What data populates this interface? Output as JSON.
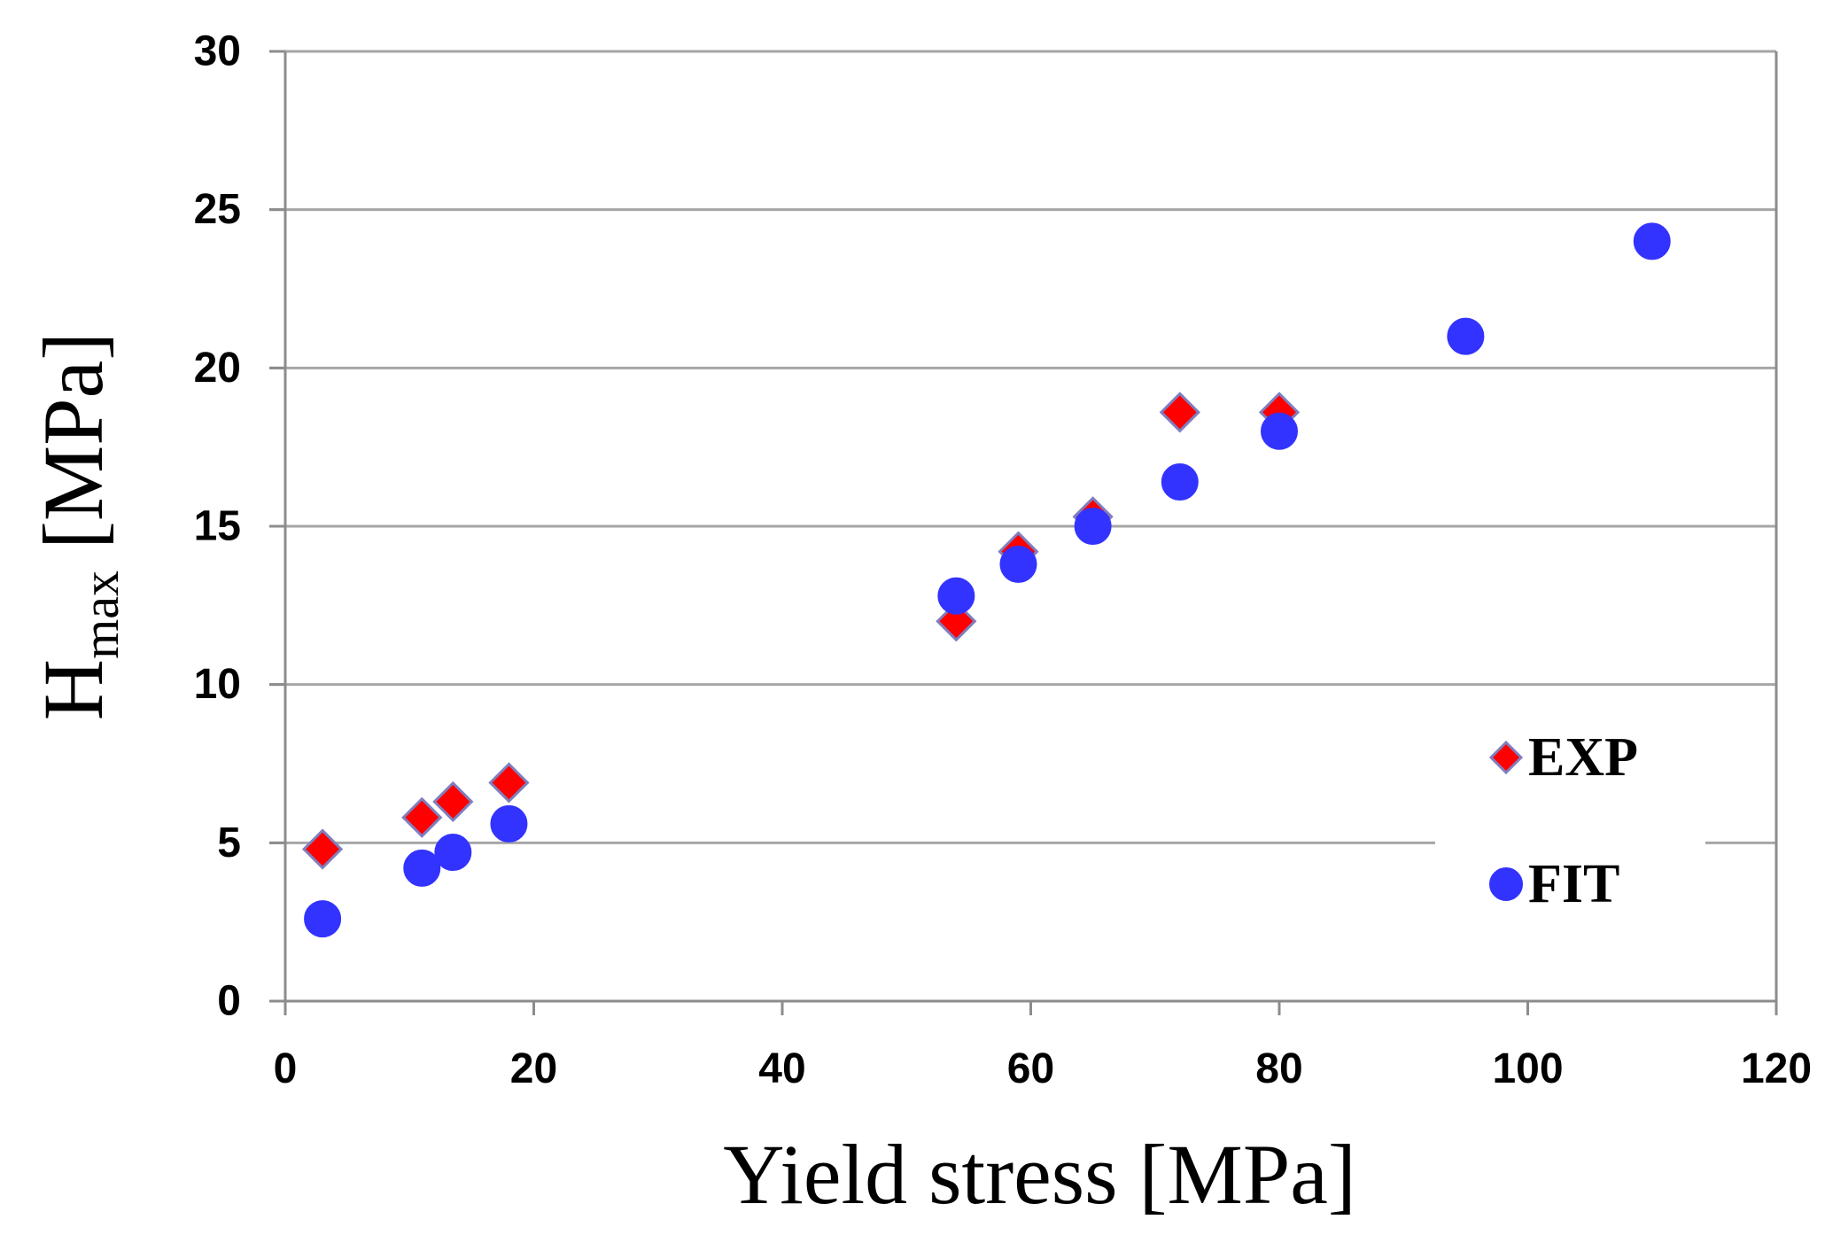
{
  "chart_data": {
    "type": "scatter",
    "title": "",
    "xlabel": "Yield stress [MPa]",
    "ylabel_main": "H",
    "ylabel_sub": "max",
    "ylabel_unit": "[MPa]",
    "xlim": [
      0,
      120
    ],
    "ylim": [
      0,
      30
    ],
    "xticks": [
      0,
      20,
      40,
      60,
      80,
      100,
      120
    ],
    "yticks": [
      0,
      5,
      10,
      15,
      20,
      25,
      30
    ],
    "grid": "horizontal",
    "legend_position": "right",
    "series": [
      {
        "name": "EXP",
        "marker": "diamond",
        "color": "#ff0000",
        "outline": "#7f7fbf",
        "points": [
          {
            "x": 3,
            "y": 4.8
          },
          {
            "x": 11,
            "y": 5.8
          },
          {
            "x": 13.5,
            "y": 6.3
          },
          {
            "x": 18,
            "y": 6.9
          },
          {
            "x": 54,
            "y": 12
          },
          {
            "x": 59,
            "y": 14.2
          },
          {
            "x": 65,
            "y": 15.3
          },
          {
            "x": 72,
            "y": 18.6
          },
          {
            "x": 80,
            "y": 18.6
          }
        ]
      },
      {
        "name": "FIT",
        "marker": "circle",
        "color": "#3333ff",
        "outline": "#3333ff",
        "points": [
          {
            "x": 3,
            "y": 2.6
          },
          {
            "x": 11,
            "y": 4.2
          },
          {
            "x": 13.5,
            "y": 4.7
          },
          {
            "x": 18,
            "y": 5.6
          },
          {
            "x": 54,
            "y": 12.8
          },
          {
            "x": 59,
            "y": 13.8
          },
          {
            "x": 65,
            "y": 15
          },
          {
            "x": 72,
            "y": 16.4
          },
          {
            "x": 80,
            "y": 18
          },
          {
            "x": 95,
            "y": 21
          },
          {
            "x": 110,
            "y": 24
          }
        ]
      }
    ]
  }
}
